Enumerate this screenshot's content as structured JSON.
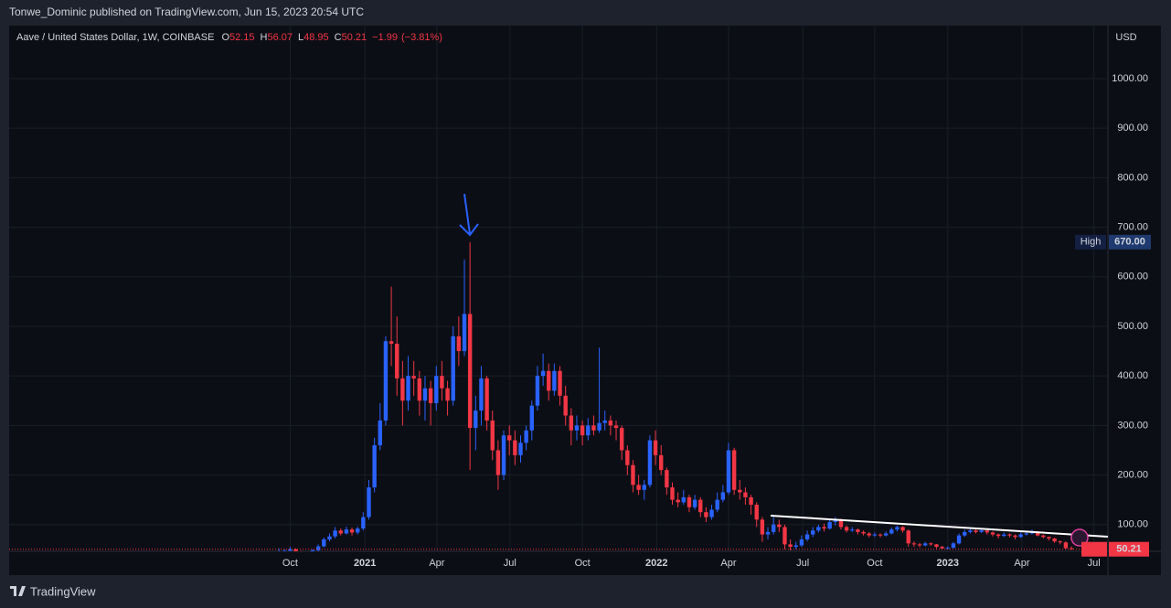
{
  "header": {
    "publisher": "Tonwe_Dominic published on TradingView.com, Jun 15, 2023 20:54 UTC"
  },
  "footer": {
    "brand": "TradingView"
  },
  "chart_data": {
    "type": "candlestick",
    "title": "Aave / United States Dollar, 1W, COINBASE",
    "legend_letters": [
      "O",
      "H",
      "L",
      "C"
    ],
    "change": {
      "value": -1.99,
      "label": "−1.99"
    },
    "change_pct": {
      "value": -3.81,
      "label": "(−3.81%)"
    },
    "currency": "USD",
    "up_color": "#2962ff",
    "down_color": "#f23645",
    "grid": true,
    "high_marker": {
      "label": "High",
      "value": 670,
      "value_label": "670.00"
    },
    "xlim": [
      -48,
      147.5
    ],
    "xticks": [
      {
        "value": 2,
        "label": "Oct"
      },
      {
        "value": 15.3,
        "label": "2021"
      },
      {
        "value": 28.1,
        "label": "Apr"
      },
      {
        "value": 41.1,
        "label": "Jul"
      },
      {
        "value": 54,
        "label": "Oct"
      },
      {
        "value": 67.2,
        "label": "2022"
      },
      {
        "value": 80,
        "label": "Apr"
      },
      {
        "value": 93.2,
        "label": "Jul"
      },
      {
        "value": 106,
        "label": "Oct"
      },
      {
        "value": 119,
        "label": "2023"
      },
      {
        "value": 132.2,
        "label": "Apr"
      },
      {
        "value": 145,
        "label": "Jul"
      }
    ],
    "ylim": [
      46,
      1107
    ],
    "yticks": [
      {
        "value": 100,
        "label": "100.00"
      },
      {
        "value": 200,
        "label": "200.00"
      },
      {
        "value": 300,
        "label": "300.00"
      },
      {
        "value": 400,
        "label": "400.00"
      },
      {
        "value": 500,
        "label": "500.00"
      },
      {
        "value": 600,
        "label": "600.00"
      },
      {
        "value": 700,
        "label": "700.00"
      },
      {
        "value": 800,
        "label": "800.00"
      },
      {
        "value": 900,
        "label": "900.00"
      },
      {
        "value": 1000,
        "label": "1000.00"
      }
    ],
    "ohlc": [
      [
        42,
        52,
        40,
        44
      ],
      [
        44,
        50,
        42,
        47
      ],
      [
        47,
        55,
        44,
        50
      ],
      [
        50,
        52,
        42,
        44
      ],
      [
        44,
        47,
        36,
        40
      ],
      [
        40,
        44,
        32,
        38
      ],
      [
        38,
        50,
        36,
        48
      ],
      [
        48,
        60,
        46,
        56
      ],
      [
        56,
        74,
        54,
        70
      ],
      [
        70,
        82,
        66,
        76
      ],
      [
        76,
        95,
        72,
        88
      ],
      [
        88,
        92,
        78,
        82
      ],
      [
        82,
        96,
        80,
        90
      ],
      [
        90,
        94,
        78,
        84
      ],
      [
        84,
        96,
        80,
        92
      ],
      [
        92,
        125,
        88,
        115
      ],
      [
        115,
        190,
        110,
        175
      ],
      [
        175,
        275,
        165,
        260
      ],
      [
        260,
        345,
        250,
        310
      ],
      [
        310,
        480,
        300,
        470
      ],
      [
        470,
        580,
        420,
        465
      ],
      [
        465,
        520,
        360,
        395
      ],
      [
        395,
        430,
        300,
        350
      ],
      [
        350,
        440,
        330,
        400
      ],
      [
        400,
        430,
        360,
        395
      ],
      [
        395,
        410,
        320,
        350
      ],
      [
        350,
        400,
        310,
        375
      ],
      [
        375,
        390,
        300,
        345
      ],
      [
        345,
        420,
        330,
        400
      ],
      [
        400,
        430,
        350,
        375
      ],
      [
        375,
        390,
        320,
        350
      ],
      [
        350,
        500,
        340,
        480
      ],
      [
        480,
        520,
        420,
        450
      ],
      [
        450,
        635,
        440,
        525
      ],
      [
        525,
        670,
        210,
        295
      ],
      [
        295,
        360,
        250,
        330
      ],
      [
        330,
        420,
        300,
        395
      ],
      [
        395,
        400,
        290,
        310
      ],
      [
        310,
        330,
        230,
        250
      ],
      [
        250,
        270,
        170,
        200
      ],
      [
        200,
        290,
        190,
        280
      ],
      [
        280,
        300,
        240,
        270
      ],
      [
        270,
        290,
        220,
        240
      ],
      [
        240,
        280,
        225,
        265
      ],
      [
        265,
        300,
        250,
        290
      ],
      [
        290,
        350,
        270,
        340
      ],
      [
        340,
        420,
        330,
        400
      ],
      [
        400,
        445,
        380,
        410
      ],
      [
        410,
        425,
        350,
        370
      ],
      [
        370,
        425,
        360,
        410
      ],
      [
        410,
        420,
        340,
        360
      ],
      [
        360,
        380,
        300,
        320
      ],
      [
        320,
        335,
        260,
        290
      ],
      [
        290,
        320,
        270,
        300
      ],
      [
        300,
        310,
        260,
        280
      ],
      [
        280,
        315,
        270,
        300
      ],
      [
        300,
        320,
        280,
        290
      ],
      [
        290,
        457,
        285,
        305
      ],
      [
        305,
        330,
        290,
        310
      ],
      [
        310,
        320,
        280,
        300
      ],
      [
        300,
        310,
        270,
        295
      ],
      [
        295,
        300,
        230,
        250
      ],
      [
        250,
        260,
        200,
        220
      ],
      [
        220,
        230,
        165,
        180
      ],
      [
        180,
        200,
        160,
        170
      ],
      [
        170,
        190,
        150,
        180
      ],
      [
        180,
        280,
        175,
        270
      ],
      [
        270,
        290,
        220,
        240
      ],
      [
        240,
        260,
        200,
        210
      ],
      [
        210,
        215,
        160,
        175
      ],
      [
        175,
        185,
        140,
        150
      ],
      [
        150,
        165,
        135,
        145
      ],
      [
        145,
        170,
        140,
        155
      ],
      [
        155,
        160,
        125,
        135
      ],
      [
        135,
        160,
        130,
        150
      ],
      [
        150,
        155,
        115,
        125
      ],
      [
        125,
        135,
        105,
        115
      ],
      [
        115,
        140,
        110,
        130
      ],
      [
        130,
        165,
        125,
        150
      ],
      [
        150,
        180,
        145,
        165
      ],
      [
        165,
        265,
        160,
        250
      ],
      [
        250,
        255,
        160,
        170
      ],
      [
        170,
        190,
        150,
        165
      ],
      [
        165,
        175,
        140,
        155
      ],
      [
        155,
        160,
        120,
        140
      ],
      [
        140,
        145,
        95,
        110
      ],
      [
        110,
        115,
        65,
        80
      ],
      [
        80,
        95,
        70,
        85
      ],
      [
        85,
        115,
        80,
        100
      ],
      [
        100,
        110,
        85,
        95
      ],
      [
        95,
        100,
        50,
        60
      ],
      [
        60,
        70,
        48,
        55
      ],
      [
        55,
        65,
        50,
        58
      ],
      [
        58,
        78,
        55,
        70
      ],
      [
        70,
        88,
        66,
        80
      ],
      [
        80,
        95,
        75,
        88
      ],
      [
        88,
        100,
        84,
        95
      ],
      [
        95,
        102,
        86,
        92
      ],
      [
        92,
        110,
        90,
        105
      ],
      [
        105,
        115,
        98,
        108
      ],
      [
        108,
        112,
        90,
        95
      ],
      [
        95,
        98,
        84,
        88
      ],
      [
        88,
        95,
        85,
        90
      ],
      [
        90,
        92,
        80,
        85
      ],
      [
        85,
        88,
        78,
        82
      ],
      [
        82,
        85,
        74,
        78
      ],
      [
        78,
        84,
        75,
        80
      ],
      [
        80,
        82,
        74,
        78
      ],
      [
        78,
        86,
        76,
        82
      ],
      [
        82,
        94,
        80,
        90
      ],
      [
        90,
        98,
        86,
        95
      ],
      [
        95,
        97,
        84,
        88
      ],
      [
        88,
        90,
        55,
        62
      ],
      [
        62,
        66,
        55,
        60
      ],
      [
        60,
        63,
        54,
        58
      ],
      [
        58,
        65,
        56,
        62
      ],
      [
        62,
        64,
        57,
        60
      ],
      [
        60,
        61,
        52,
        55
      ],
      [
        55,
        57,
        50,
        52
      ],
      [
        52,
        56,
        50,
        53
      ],
      [
        53,
        65,
        52,
        62
      ],
      [
        62,
        82,
        60,
        78
      ],
      [
        78,
        90,
        75,
        85
      ],
      [
        85,
        93,
        82,
        88
      ],
      [
        88,
        92,
        82,
        85
      ],
      [
        85,
        92,
        83,
        88
      ],
      [
        88,
        90,
        80,
        84
      ],
      [
        84,
        86,
        76,
        80
      ],
      [
        80,
        82,
        72,
        77
      ],
      [
        77,
        84,
        75,
        80
      ],
      [
        80,
        82,
        74,
        78
      ],
      [
        78,
        80,
        70,
        75
      ],
      [
        75,
        84,
        73,
        80
      ],
      [
        80,
        86,
        78,
        82
      ],
      [
        82,
        90,
        80,
        85
      ],
      [
        85,
        87,
        76,
        78
      ],
      [
        78,
        80,
        72,
        75
      ],
      [
        75,
        76,
        68,
        72
      ],
      [
        72,
        73,
        63,
        66
      ],
      [
        66,
        68,
        60,
        64
      ],
      [
        64,
        66,
        50,
        52.2
      ],
      [
        52.15,
        56.07,
        48.95,
        50.21
      ]
    ]
  }
}
